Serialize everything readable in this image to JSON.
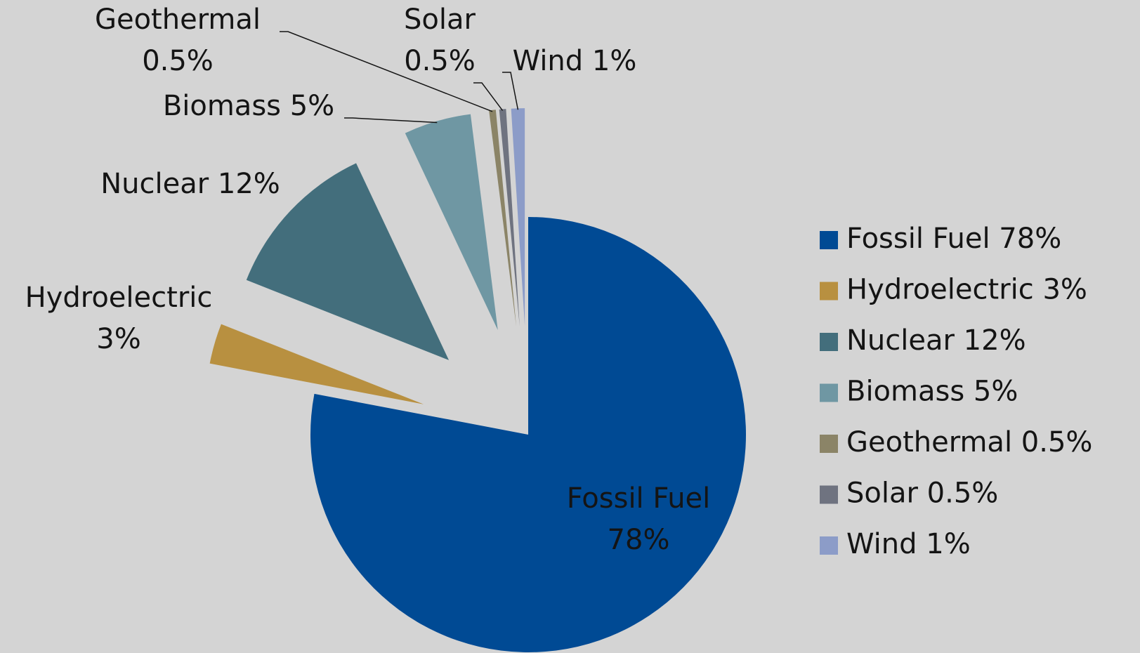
{
  "chart_data": {
    "type": "pie",
    "categories": [
      "Fossil Fuel",
      "Hydroelectric",
      "Nuclear",
      "Biomass",
      "Geothermal",
      "Solar",
      "Wind"
    ],
    "values": [
      78,
      3,
      12,
      5,
      0.5,
      0.5,
      1
    ],
    "value_labels": [
      "78%",
      "3%",
      "12%",
      "5%",
      "0.5%",
      "0.5%",
      "1%"
    ],
    "colors": [
      "#004a94",
      "#b89040",
      "#436e7c",
      "#6f97a3",
      "#8b8467",
      "#6f7380",
      "#8c9cc8"
    ],
    "legend": "right"
  }
}
